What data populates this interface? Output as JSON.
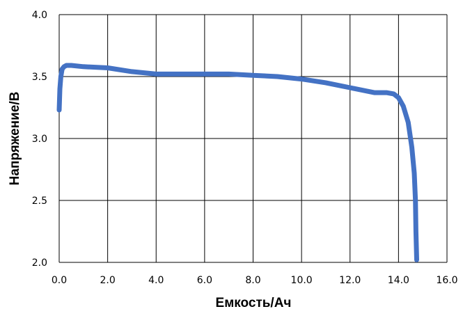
{
  "chart_data": {
    "type": "line",
    "title": "",
    "xlabel": "Емкость/Ач",
    "ylabel": "Напряжение/В",
    "xlim": [
      0,
      16
    ],
    "ylim": [
      2.0,
      4.0
    ],
    "x_ticks": [
      "0.0",
      "2.0",
      "4.0",
      "6.0",
      "8.0",
      "10.0",
      "12.0",
      "14.0",
      "16.0"
    ],
    "y_ticks": [
      "2.0",
      "2.5",
      "3.0",
      "3.5",
      "4.0"
    ],
    "grid": true,
    "legend": "none",
    "series": [
      {
        "color": "#4472C4",
        "x": [
          0.0,
          0.03,
          0.07,
          0.12,
          0.2,
          0.3,
          0.5,
          1.0,
          2.0,
          3.0,
          4.0,
          5.0,
          6.0,
          7.0,
          8.0,
          9.0,
          10.0,
          11.0,
          12.0,
          13.0,
          13.5,
          13.8,
          14.0,
          14.2,
          14.4,
          14.55,
          14.65,
          14.7,
          14.72,
          14.75
        ],
        "y": [
          3.23,
          3.4,
          3.5,
          3.56,
          3.58,
          3.59,
          3.59,
          3.58,
          3.57,
          3.54,
          3.52,
          3.52,
          3.52,
          3.52,
          3.51,
          3.5,
          3.48,
          3.45,
          3.41,
          3.37,
          3.37,
          3.36,
          3.33,
          3.26,
          3.13,
          2.93,
          2.72,
          2.5,
          2.25,
          2.02
        ]
      }
    ]
  }
}
